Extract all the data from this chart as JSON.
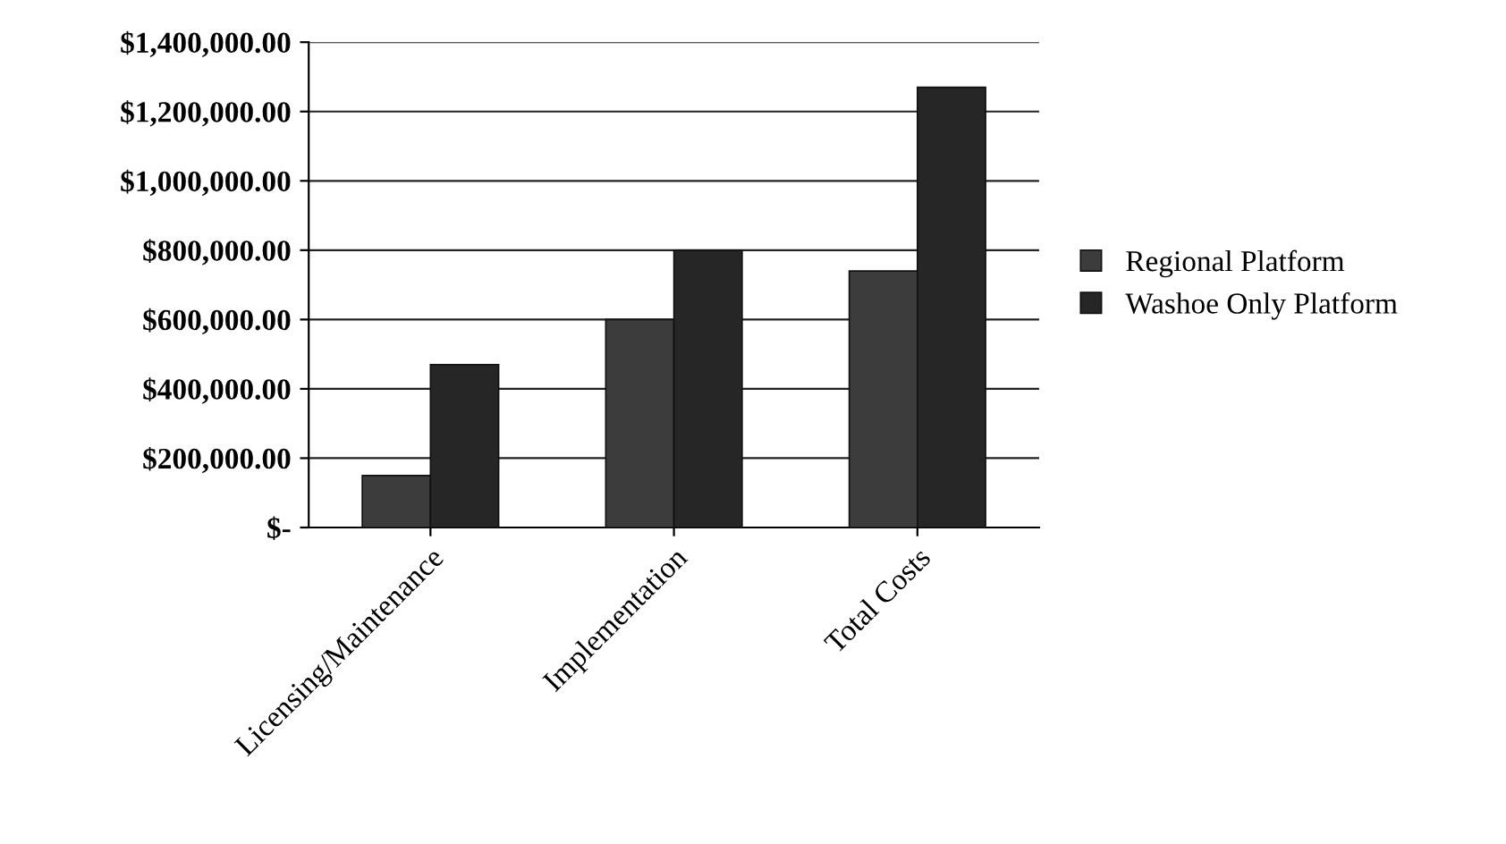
{
  "chart_data": {
    "type": "bar",
    "categories": [
      "Licensing/Maintenance",
      "Implementation",
      "Total Costs"
    ],
    "series": [
      {
        "name": "Regional Platform",
        "color": "#3c3c3c",
        "values": [
          150000,
          600000,
          740000
        ]
      },
      {
        "name": "Washoe Only Platform",
        "color": "#262626",
        "values": [
          470000,
          800000,
          1270000
        ]
      }
    ],
    "ylim": [
      0,
      1400000
    ],
    "yticks": [
      {
        "value": 0,
        "label": "$-"
      },
      {
        "value": 200000,
        "label": "$200,000.00"
      },
      {
        "value": 400000,
        "label": "$400,000.00"
      },
      {
        "value": 600000,
        "label": "$600,000.00"
      },
      {
        "value": 800000,
        "label": "$800,000.00"
      },
      {
        "value": 1000000,
        "label": "$1,000,000.00"
      },
      {
        "value": 1200000,
        "label": "$1,200,000.00"
      },
      {
        "value": 1400000,
        "label": "$1,400,000.00"
      }
    ],
    "grid": "y",
    "legend": "right"
  }
}
